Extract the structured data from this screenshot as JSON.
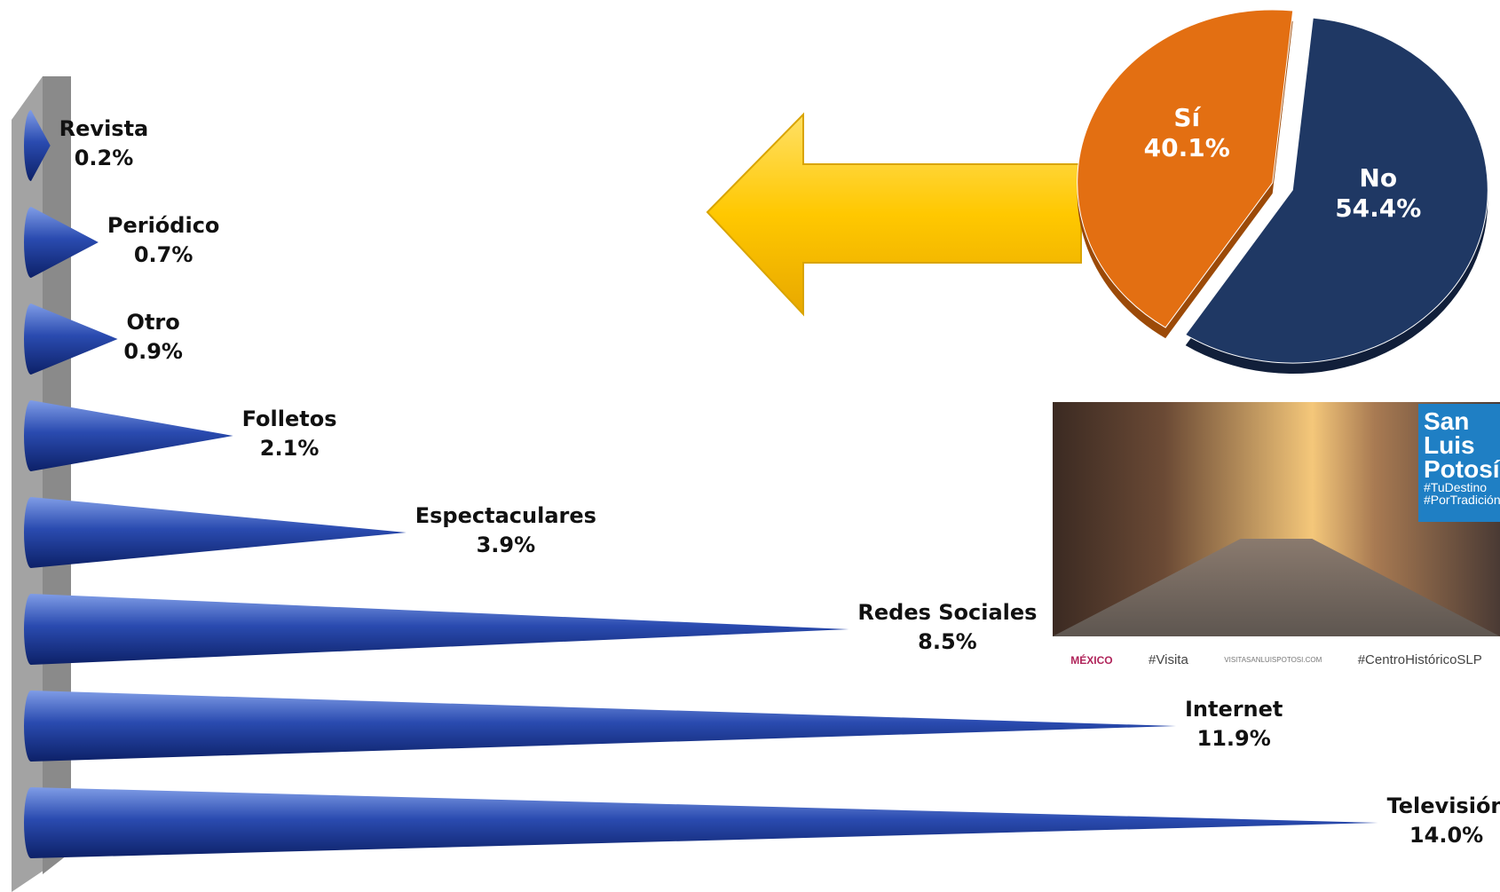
{
  "chart_data": [
    {
      "type": "cone-bar",
      "categories": [
        "Revista",
        "Periódico",
        "Otro",
        "Folletos",
        "Espectaculares",
        "Redes Sociales",
        "Internet",
        "Televisión"
      ],
      "values": [
        0.2,
        0.7,
        0.9,
        2.1,
        3.9,
        8.5,
        11.9,
        14.0
      ],
      "value_labels": [
        "0.2%",
        "0.7%",
        "0.9%",
        "2.1%",
        "3.9%",
        "8.5%",
        "11.9%",
        "14.0%"
      ],
      "color": "#2a4bb0"
    },
    {
      "type": "pie",
      "categories": [
        "Sí",
        "No"
      ],
      "values": [
        40.1,
        54.4
      ],
      "value_labels": [
        "40.1%",
        "54.4%"
      ],
      "colors": [
        "#e36f12",
        "#1f3864"
      ]
    }
  ],
  "banner": {
    "title": "San Luis Potosí",
    "tags": [
      "#TuDestino",
      "#PorTradición"
    ],
    "footer": [
      "MÉXICO",
      "#Visita",
      "VISITASANLUISPOTOSI.COM",
      "#CentroHistóricoSLP"
    ]
  }
}
